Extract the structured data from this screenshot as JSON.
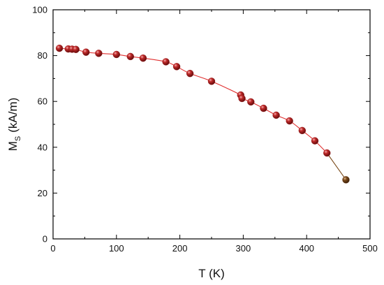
{
  "chart_data": {
    "type": "scatter",
    "xlabel": "T (K)",
    "ylabel_main": "M",
    "ylabel_sub": "S",
    "ylabel_unit": "(kA/m)",
    "xlim": [
      0,
      500
    ],
    "ylim": [
      0,
      100
    ],
    "x_ticks": [
      0,
      100,
      200,
      300,
      400,
      500
    ],
    "y_ticks": [
      0,
      20,
      40,
      60,
      80,
      100
    ],
    "grid": false,
    "marker_color": "#9b1b1b",
    "last_marker_color": "#6b3a14",
    "line_color": "#e03030",
    "last_segment_color": "#7a4a1a",
    "points": [
      {
        "x": 10,
        "y": 83.2
      },
      {
        "x": 24,
        "y": 82.9
      },
      {
        "x": 30,
        "y": 82.8
      },
      {
        "x": 36,
        "y": 82.7
      },
      {
        "x": 52,
        "y": 81.5
      },
      {
        "x": 72,
        "y": 81.0
      },
      {
        "x": 100,
        "y": 80.5
      },
      {
        "x": 122,
        "y": 79.6
      },
      {
        "x": 142,
        "y": 78.9
      },
      {
        "x": 178,
        "y": 77.3
      },
      {
        "x": 195,
        "y": 75.2
      },
      {
        "x": 216,
        "y": 72.2
      },
      {
        "x": 250,
        "y": 68.8
      },
      {
        "x": 296,
        "y": 62.8
      },
      {
        "x": 298,
        "y": 61.3
      },
      {
        "x": 312,
        "y": 59.8
      },
      {
        "x": 332,
        "y": 57.0
      },
      {
        "x": 352,
        "y": 54.0
      },
      {
        "x": 373,
        "y": 51.5
      },
      {
        "x": 393,
        "y": 47.3
      },
      {
        "x": 413,
        "y": 42.8
      },
      {
        "x": 432,
        "y": 37.5
      },
      {
        "x": 462,
        "y": 25.8
      }
    ]
  }
}
